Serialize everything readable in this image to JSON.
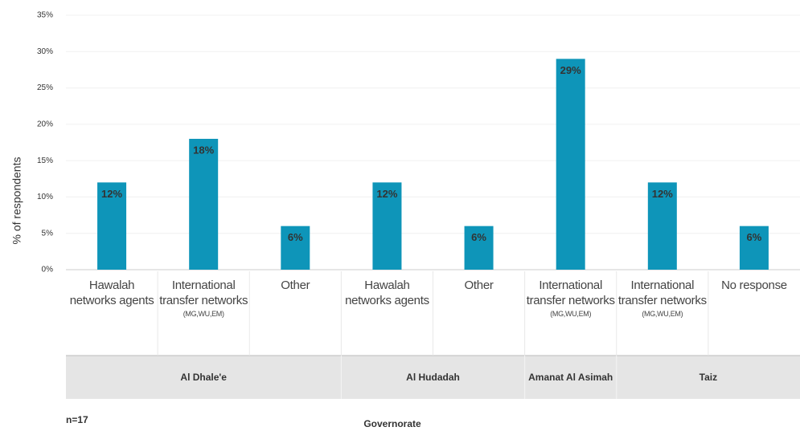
{
  "chart_data": {
    "type": "bar",
    "y_label": "% of respondents",
    "x_label": "Governorate",
    "note": "n=17",
    "categories": [
      "Hawalah networks agents",
      "International transfer networks",
      "Other",
      "Hawalah networks agents",
      "Other",
      "International transfer networks",
      "International transfer networks",
      "No response"
    ],
    "category_notes": [
      null,
      "(MG,WU,EM)",
      null,
      null,
      null,
      "(MG,WU,EM)",
      "(MG,WU,EM)",
      null
    ],
    "category_groups": [
      "Al Dhale'e",
      "Al Dhale'e",
      "Al Dhale'e",
      "Al Hudadah",
      "Al Hudadah",
      "Amanat Al Asimah",
      "Taiz",
      "Taiz"
    ],
    "values": [
      12,
      18,
      6,
      12,
      6,
      29,
      12,
      6
    ],
    "value_labels": [
      "12%",
      "18%",
      "6%",
      "12%",
      "6%",
      "29%",
      "12%",
      "6%"
    ],
    "color": "#0e95b9",
    "ylim": [
      0,
      35
    ],
    "yticks": [
      {
        "value": 0,
        "label": "0%"
      },
      {
        "value": 5,
        "label": "5%"
      },
      {
        "value": 10,
        "label": "10%"
      },
      {
        "value": 15,
        "label": "15%"
      },
      {
        "value": 20,
        "label": "20%"
      },
      {
        "value": 25,
        "label": "25%"
      },
      {
        "value": 30,
        "label": "30%"
      },
      {
        "value": 35,
        "label": "35%"
      }
    ],
    "grid": true
  }
}
